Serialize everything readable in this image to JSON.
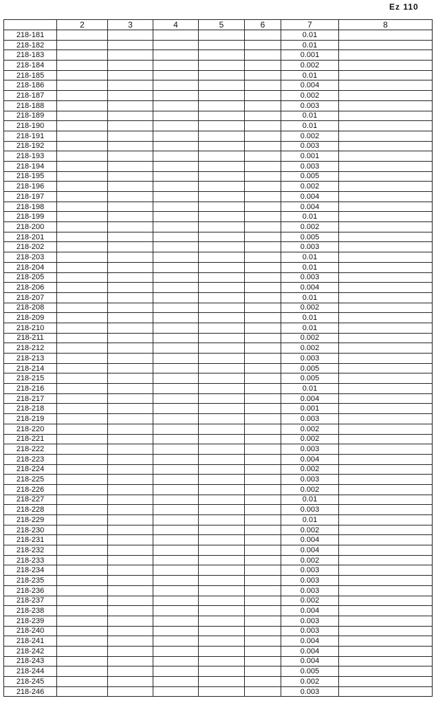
{
  "page_number": "Ez 110",
  "headers": [
    "",
    "2",
    "3",
    "4",
    "5",
    "6",
    "7",
    "8"
  ],
  "rows": [
    [
      "218-181",
      "0.01"
    ],
    [
      "218-182",
      "0.01"
    ],
    [
      "218-183",
      "0.001"
    ],
    [
      "218-184",
      "0.002"
    ],
    [
      "218-185",
      "0.01"
    ],
    [
      "218-186",
      "0.004"
    ],
    [
      "218-187",
      "0.002"
    ],
    [
      "218-188",
      "0.003"
    ],
    [
      "218-189",
      "0.01"
    ],
    [
      "218-190",
      "0.01"
    ],
    [
      "218-191",
      "0.002"
    ],
    [
      "218-192",
      "0.003"
    ],
    [
      "218-193",
      "0.001"
    ],
    [
      "218-194",
      "0.003"
    ],
    [
      "218-195",
      "0.005"
    ],
    [
      "218-196",
      "0.002"
    ],
    [
      "218-197",
      "0.004"
    ],
    [
      "218-198",
      "0.004"
    ],
    [
      "218-199",
      "0.01"
    ],
    [
      "218-200",
      "0.002"
    ],
    [
      "218-201",
      "0.005"
    ],
    [
      "218-202",
      "0.003"
    ],
    [
      "218-203",
      "0.01"
    ],
    [
      "218-204",
      "0.01"
    ],
    [
      "218-205",
      "0.003"
    ],
    [
      "218-206",
      "0.004"
    ],
    [
      "218-207",
      "0.01"
    ],
    [
      "218-208",
      "0.002"
    ],
    [
      "218-209",
      "0.01"
    ],
    [
      "218-210",
      "0.01"
    ],
    [
      "218-211",
      "0.002"
    ],
    [
      "218-212",
      "0.002"
    ],
    [
      "218-213",
      "0.003"
    ],
    [
      "218-214",
      "0.005"
    ],
    [
      "218-215",
      "0.005"
    ],
    [
      "218-216",
      "0.01"
    ],
    [
      "218-217",
      "0.004"
    ],
    [
      "218-218",
      "0.001"
    ],
    [
      "218-219",
      "0.003"
    ],
    [
      "218-220",
      "0.002"
    ],
    [
      "218-221",
      "0.002"
    ],
    [
      "218-222",
      "0.003"
    ],
    [
      "218-223",
      "0.004"
    ],
    [
      "218-224",
      "0.002"
    ],
    [
      "218-225",
      "0.003"
    ],
    [
      "218-226",
      "0.002"
    ],
    [
      "218-227",
      "0.01"
    ],
    [
      "218-228",
      "0.003"
    ],
    [
      "218-229",
      "0.01"
    ],
    [
      "218-230",
      "0.002"
    ],
    [
      "218-231",
      "0.004"
    ],
    [
      "218-232",
      "0.004"
    ],
    [
      "218-233",
      "0.002"
    ],
    [
      "218-234",
      "0.003"
    ],
    [
      "218-235",
      "0.003"
    ],
    [
      "218-236",
      "0.003"
    ],
    [
      "218-237",
      "0.002"
    ],
    [
      "218-238",
      "0.004"
    ],
    [
      "218-239",
      "0.003"
    ],
    [
      "218-240",
      "0.003"
    ],
    [
      "218-241",
      "0.004"
    ],
    [
      "218-242",
      "0.004"
    ],
    [
      "218-243",
      "0.004"
    ],
    [
      "218-244",
      "0.005"
    ],
    [
      "218-245",
      "0.002"
    ],
    [
      "218-246",
      "0.003"
    ]
  ]
}
